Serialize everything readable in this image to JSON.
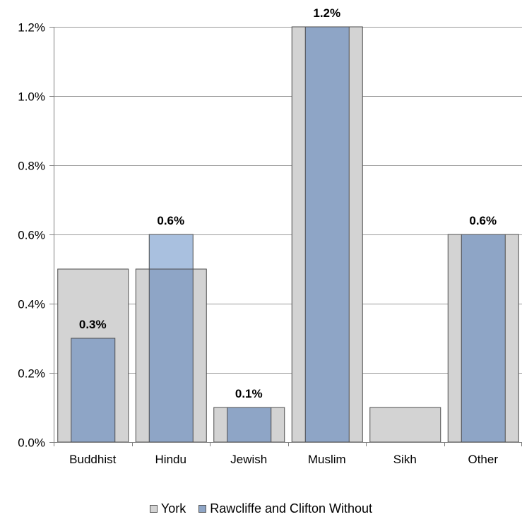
{
  "chart_data": {
    "type": "bar",
    "categories": [
      "Buddhist",
      "Hindu",
      "Jewish",
      "Muslim",
      "Sikh",
      "Other"
    ],
    "series": [
      {
        "name": "York",
        "values": [
          0.5,
          0.5,
          0.1,
          1.2,
          0.1,
          0.6
        ],
        "color": "#d3d3d3",
        "stroke": "#4d4d4d"
      },
      {
        "name": "Rawcliffe and Clifton Without",
        "values": [
          0.3,
          0.6,
          0.1,
          1.2,
          0.0,
          0.6
        ],
        "color": "#8ea5c6",
        "stroke": "#4d4d4d"
      }
    ],
    "data_labels": [
      "0.3%",
      "0.6%",
      "0.1%",
      "1.2%",
      null,
      "0.6%"
    ],
    "y_ticks": [
      "0.0%",
      "0.2%",
      "0.4%",
      "0.6%",
      "0.8%",
      "1.0%",
      "1.2%"
    ],
    "ylim": [
      0,
      1.2
    ],
    "grid": true,
    "legend_position": "bottom",
    "overlap_highlight_color": "#a9c0df"
  }
}
